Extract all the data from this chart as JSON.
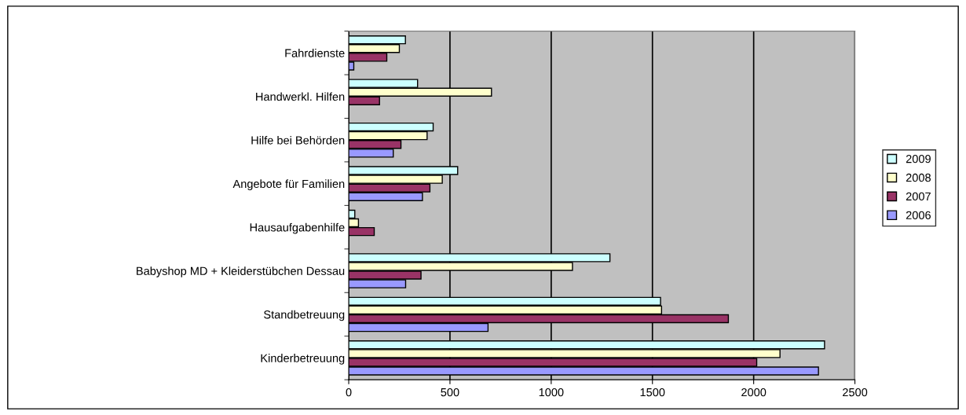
{
  "chart_data": {
    "type": "bar",
    "orientation": "horizontal",
    "categories": [
      "Fahrdienste",
      "Handwerkl. Hilfen",
      "Hilfe bei Behörden",
      "Angebote für Familien",
      "Hausaufgabenhilfe",
      "Babyshop MD + Kleiderstübchen Dessau",
      "Standbetreuung",
      "Kinderbetreuung"
    ],
    "series": [
      {
        "name": "2009",
        "color": "#ccffff",
        "values": [
          280,
          340,
          417,
          538,
          30,
          1290,
          1540,
          2350
        ]
      },
      {
        "name": "2008",
        "color": "#ffffcc",
        "values": [
          250,
          705,
          387,
          462,
          48,
          1105,
          1545,
          2130
        ]
      },
      {
        "name": "2007",
        "color": "#993366",
        "values": [
          188,
          152,
          258,
          401,
          126,
          357,
          1875,
          2015
        ]
      },
      {
        "name": "2006",
        "color": "#9999ff",
        "values": [
          25,
          null,
          220,
          364,
          null,
          281,
          688,
          2320
        ]
      }
    ],
    "xlim": [
      0,
      2500
    ],
    "xticks": [
      0,
      500,
      1000,
      1500,
      2000,
      2500
    ],
    "grid": "x",
    "legend": "right"
  }
}
